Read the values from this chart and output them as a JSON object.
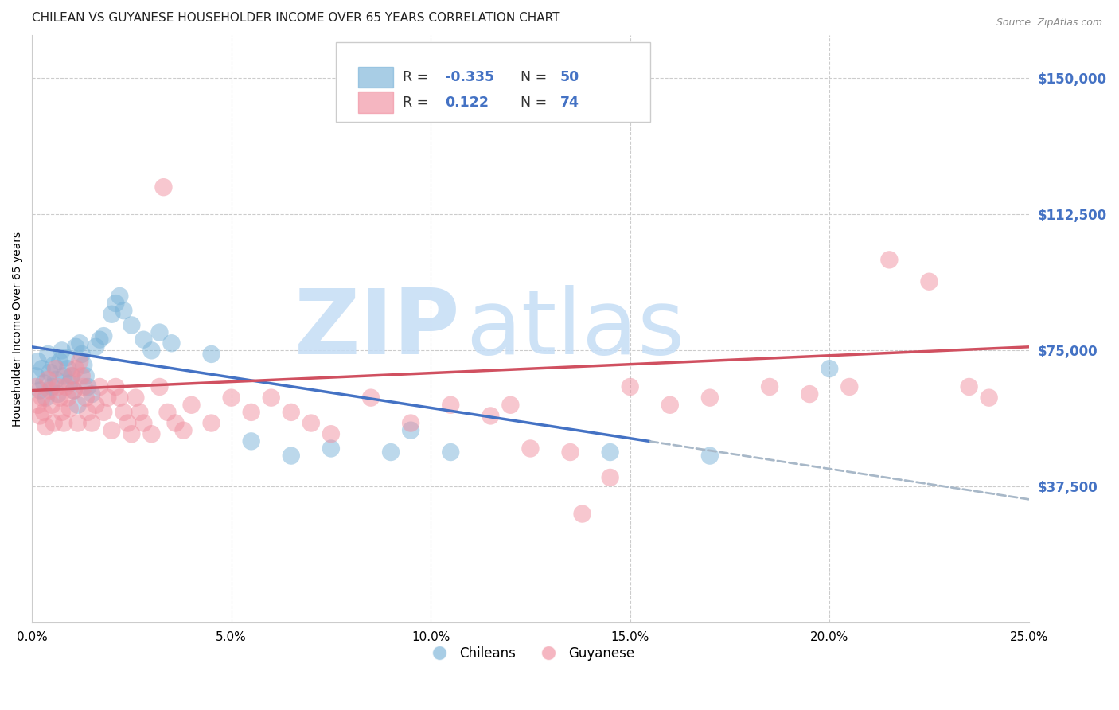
{
  "title": "CHILEAN VS GUYANESE HOUSEHOLDER INCOME OVER 65 YEARS CORRELATION CHART",
  "source": "Source: ZipAtlas.com",
  "ylabel": "Householder Income Over 65 years",
  "ytick_labels": [
    "$37,500",
    "$75,000",
    "$112,500",
    "$150,000"
  ],
  "ytick_vals": [
    37500,
    75000,
    112500,
    150000
  ],
  "xtick_labels": [
    "0.0%",
    "5.0%",
    "10.0%",
    "15.0%",
    "20.0%",
    "25.0%"
  ],
  "xtick_vals": [
    0.0,
    5.0,
    10.0,
    15.0,
    20.0,
    25.0
  ],
  "ylim": [
    0,
    162000
  ],
  "xlim": [
    0.0,
    25.0
  ],
  "blue_scatter_color": "#7ab3d8",
  "pink_scatter_color": "#f090a0",
  "trend_blue_color": "#4472c4",
  "trend_pink_color": "#d05060",
  "trend_dashed_color": "#a8b8c8",
  "watermark_text": "ZIPatlas",
  "watermark_color": "#c5ddf5",
  "background_color": "#ffffff",
  "grid_color": "#cccccc",
  "axis_label_color": "#4472c4",
  "title_color": "#222222",
  "source_color": "#888888",
  "blue_trend_x0": 0.0,
  "blue_trend_y0": 76000,
  "blue_trend_x1": 25.0,
  "blue_trend_y1": 34000,
  "pink_trend_x0": 0.0,
  "pink_trend_y0": 64000,
  "pink_trend_x1": 25.0,
  "pink_trend_y1": 76000,
  "blue_solid_end": 15.5,
  "chileans_x": [
    0.1,
    0.15,
    0.2,
    0.25,
    0.3,
    0.35,
    0.4,
    0.45,
    0.5,
    0.55,
    0.6,
    0.65,
    0.7,
    0.75,
    0.8,
    0.85,
    0.9,
    0.95,
    1.0,
    1.05,
    1.1,
    1.15,
    1.2,
    1.25,
    1.3,
    1.35,
    1.4,
    1.5,
    1.6,
    1.7,
    1.8,
    2.0,
    2.1,
    2.2,
    2.3,
    2.5,
    2.8,
    3.0,
    3.2,
    3.5,
    4.5,
    5.5,
    6.5,
    7.5,
    9.0,
    9.5,
    10.5,
    14.5,
    17.0,
    20.0
  ],
  "chileans_y": [
    68000,
    72000,
    64000,
    70000,
    66000,
    62000,
    74000,
    69000,
    65000,
    71000,
    67000,
    63000,
    72000,
    75000,
    68000,
    73000,
    70000,
    66000,
    68000,
    64000,
    76000,
    60000,
    77000,
    74000,
    71000,
    68000,
    65000,
    63000,
    76000,
    78000,
    79000,
    85000,
    88000,
    90000,
    86000,
    82000,
    78000,
    75000,
    80000,
    77000,
    74000,
    50000,
    46000,
    48000,
    47000,
    53000,
    47000,
    47000,
    46000,
    70000
  ],
  "guyanese_x": [
    0.1,
    0.15,
    0.2,
    0.25,
    0.3,
    0.35,
    0.4,
    0.45,
    0.5,
    0.55,
    0.6,
    0.65,
    0.7,
    0.75,
    0.8,
    0.85,
    0.9,
    0.95,
    1.0,
    1.05,
    1.1,
    1.15,
    1.2,
    1.25,
    1.3,
    1.35,
    1.4,
    1.5,
    1.6,
    1.7,
    1.8,
    1.9,
    2.0,
    2.1,
    2.2,
    2.3,
    2.4,
    2.5,
    2.6,
    2.7,
    2.8,
    3.0,
    3.2,
    3.4,
    3.6,
    3.8,
    4.0,
    4.5,
    5.0,
    5.5,
    6.0,
    6.5,
    7.0,
    7.5,
    8.5,
    9.5,
    10.5,
    11.5,
    12.0,
    12.5,
    13.5,
    14.5,
    15.0,
    16.0,
    17.0,
    18.5,
    19.5,
    20.5,
    21.5,
    22.5,
    23.5,
    3.3,
    24.0,
    13.8
  ],
  "guyanese_y": [
    65000,
    60000,
    57000,
    62000,
    58000,
    54000,
    67000,
    64000,
    60000,
    55000,
    70000,
    65000,
    62000,
    58000,
    55000,
    65000,
    62000,
    59000,
    68000,
    64000,
    70000,
    55000,
    72000,
    68000,
    65000,
    62000,
    58000,
    55000,
    60000,
    65000,
    58000,
    62000,
    53000,
    65000,
    62000,
    58000,
    55000,
    52000,
    62000,
    58000,
    55000,
    52000,
    65000,
    58000,
    55000,
    53000,
    60000,
    55000,
    62000,
    58000,
    62000,
    58000,
    55000,
    52000,
    62000,
    55000,
    60000,
    57000,
    60000,
    48000,
    47000,
    40000,
    65000,
    60000,
    62000,
    65000,
    63000,
    65000,
    100000,
    94000,
    65000,
    120000,
    62000,
    30000
  ]
}
